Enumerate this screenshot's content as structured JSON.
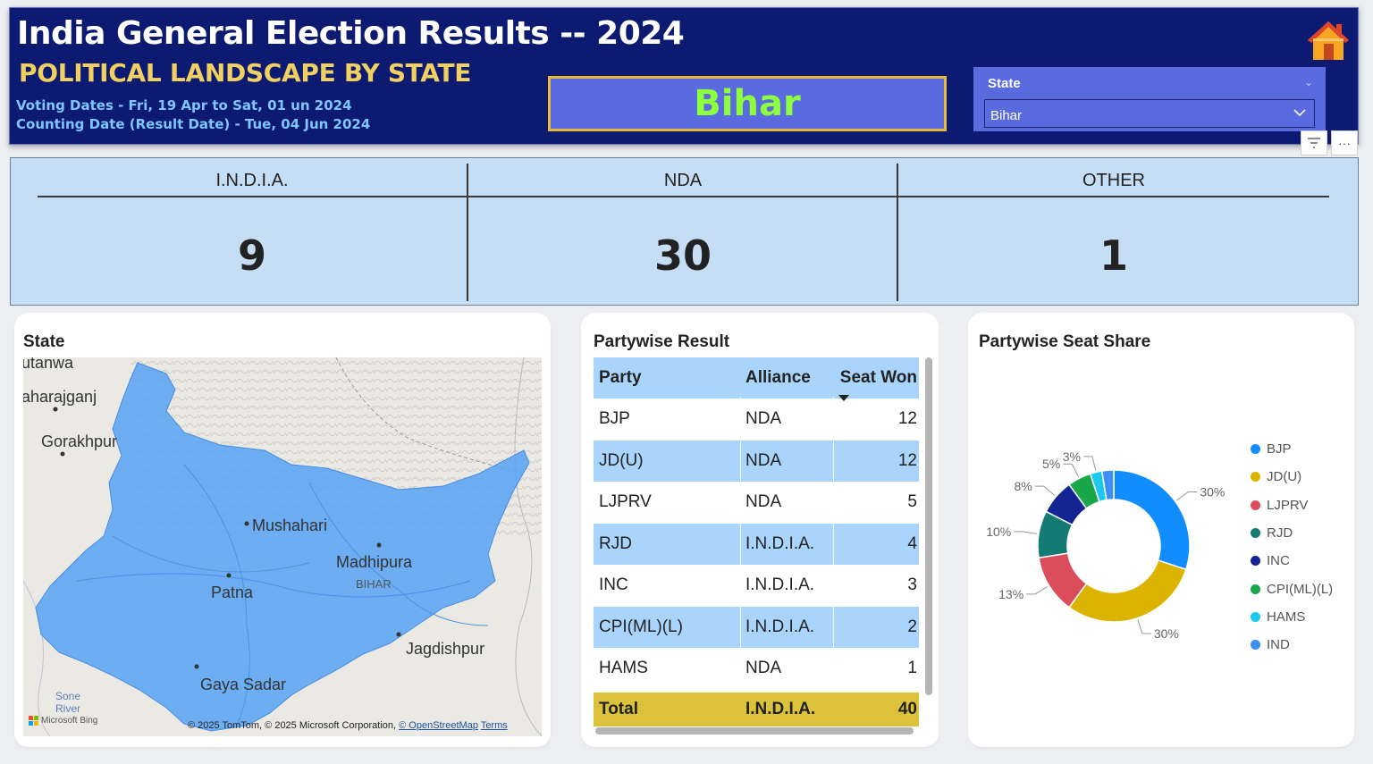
{
  "header": {
    "title": "India General Election Results -- 2024",
    "subtitle": "POLITICAL LANDSCAPE BY STATE",
    "voting_dates": "Voting Dates - Fri, 19 Apr to Sat, 01 un 2024",
    "counting_date": "Counting Date (Result Date) - Tue, 04 Jun 2024",
    "selected_state": "Bihar",
    "slicer_label": "State",
    "slicer_value": "Bihar"
  },
  "icons": {
    "home": "home-icon",
    "filter": "filter-icon",
    "more": "more-options-icon"
  },
  "kpis": [
    {
      "label": "I.N.D.I.A.",
      "value": "9"
    },
    {
      "label": "NDA",
      "value": "30"
    },
    {
      "label": "OTHER",
      "value": "1"
    }
  ],
  "map": {
    "title": "State",
    "labels": [
      "utanwa",
      "aharajganj",
      "Gorakhpur",
      "Mushahari",
      "Madhipura",
      "BIHAR",
      "Patna",
      "Jagdishpur",
      "Gaya Sadar",
      "Sone",
      "River"
    ],
    "copyright": "© 2025 TomTom, © 2025 Microsoft Corporation,",
    "osm_link": "© OpenStreetMap",
    "terms_link": "Terms",
    "bing": "Microsoft Bing"
  },
  "table": {
    "title": "Partywise Result",
    "columns": [
      "Party",
      "Alliance",
      "Seat Won"
    ],
    "rows": [
      {
        "party": "BJP",
        "alliance": "NDA",
        "seats": "12"
      },
      {
        "party": "JD(U)",
        "alliance": "NDA",
        "seats": "12"
      },
      {
        "party": "LJPRV",
        "alliance": "NDA",
        "seats": "5"
      },
      {
        "party": "RJD",
        "alliance": "I.N.D.I.A.",
        "seats": "4"
      },
      {
        "party": "INC",
        "alliance": "I.N.D.I.A.",
        "seats": "3"
      },
      {
        "party": "CPI(ML)(L)",
        "alliance": "I.N.D.I.A.",
        "seats": "2"
      },
      {
        "party": "HAMS",
        "alliance": "NDA",
        "seats": "1"
      }
    ],
    "total": {
      "party": "Total",
      "alliance": "I.N.D.I.A.",
      "seats": "40"
    }
  },
  "chart_data": {
    "type": "pie",
    "title": "Partywise Seat Share",
    "categories": [
      "BJP",
      "JD(U)",
      "LJPRV",
      "RJD",
      "INC",
      "CPI(ML)(L)",
      "HAMS",
      "IND"
    ],
    "values": [
      12,
      12,
      5,
      4,
      3,
      2,
      1,
      1
    ],
    "data_labels": [
      "30%",
      "30%",
      "13%",
      "10%",
      "8%",
      "5%",
      "3%",
      ""
    ],
    "colors": [
      "#118dff",
      "#dcb400",
      "#dc4d5b",
      "#137a74",
      "#152493",
      "#1aa74a",
      "#1cc9ee",
      "#3d8ef7"
    ],
    "legend_position": "right"
  }
}
